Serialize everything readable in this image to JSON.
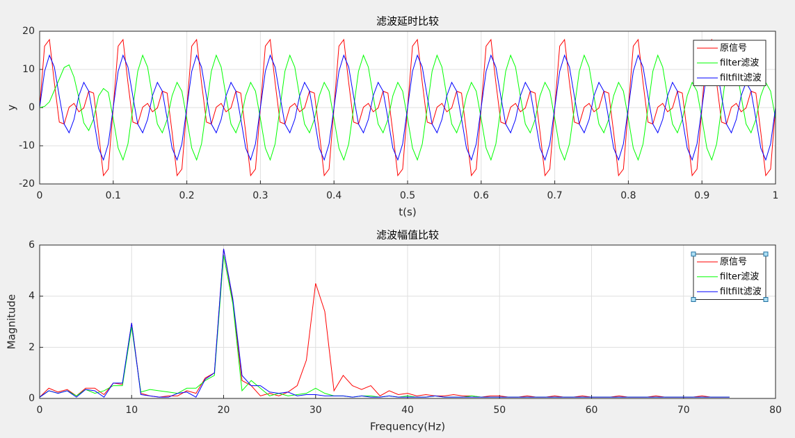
{
  "chart_data": [
    {
      "type": "line",
      "title": "滤波延时比较",
      "xlabel": "t(s)",
      "ylabel": "y",
      "xlim": [
        0,
        1
      ],
      "ylim": [
        -20,
        20
      ],
      "xticks": [
        0,
        0.1,
        0.2,
        0.3,
        0.4,
        0.5,
        0.6,
        0.7,
        0.8,
        0.9,
        1
      ],
      "yticks": [
        -20,
        -10,
        0,
        10,
        20
      ],
      "grid": true,
      "legend": "northeast",
      "x": [
        0,
        0.0067,
        0.0133,
        0.02,
        0.0267,
        0.0333,
        0.04,
        0.0467,
        0.0533,
        0.06,
        0.0667,
        0.0733,
        0.08,
        0.0867,
        0.0933,
        0.1,
        0.1067,
        0.1133,
        0.12,
        0.1267,
        0.1333,
        0.14,
        0.1467,
        0.1533,
        0.16,
        0.1667,
        0.1733,
        0.18,
        0.1867,
        0.1933,
        0.2,
        0.2067,
        0.2133,
        0.22,
        0.2267,
        0.2333,
        0.24,
        0.2467,
        0.2533,
        0.26,
        0.2667,
        0.2733,
        0.28,
        0.2867,
        0.2933,
        0.3,
        0.3067,
        0.3133,
        0.32,
        0.3267,
        0.3333,
        0.34,
        0.3467,
        0.3533,
        0.36,
        0.3667,
        0.3733,
        0.38,
        0.3867,
        0.3933,
        0.4,
        0.4067,
        0.4133,
        0.42,
        0.4267,
        0.4333,
        0.44,
        0.4467,
        0.4533,
        0.46,
        0.4667,
        0.4733,
        0.48,
        0.4867,
        0.4933,
        0.5,
        0.5067,
        0.5133,
        0.52,
        0.5267,
        0.5333,
        0.54,
        0.5467,
        0.5533,
        0.56,
        0.5667,
        0.5733,
        0.58,
        0.5867,
        0.5933,
        0.6,
        0.6067,
        0.6133,
        0.62,
        0.6267,
        0.6333,
        0.64,
        0.6467,
        0.6533,
        0.66,
        0.6667,
        0.6733,
        0.68,
        0.6867,
        0.6933,
        0.7,
        0.7067,
        0.7133,
        0.72,
        0.7267,
        0.7333,
        0.74,
        0.7467,
        0.7533,
        0.76,
        0.7667,
        0.7733,
        0.78,
        0.7867,
        0.7933,
        0.8,
        0.8067,
        0.8133,
        0.82,
        0.8267,
        0.8333,
        0.84,
        0.8467,
        0.8533,
        0.86,
        0.8667,
        0.8733,
        0.88,
        0.8867,
        0.8933,
        0.9,
        0.9067,
        0.9133,
        0.92,
        0.9267,
        0.9333,
        0.94,
        0.9467,
        0.9533,
        0.96,
        0.9667,
        0.9733,
        0.98,
        0.9867,
        0.9933,
        1
      ],
      "series": [
        {
          "name": "原信号",
          "color": "#ff0000",
          "values": [
            0,
            16.1,
            17.8,
            6.5,
            -3.8,
            -4.3,
            0.1,
            1.1,
            -1.1,
            -0.1,
            4.3,
            3.8,
            -6.5,
            -17.8,
            -16.1,
            0,
            16.1,
            17.8,
            6.5,
            -3.8,
            -4.3,
            0.1,
            1.1,
            -1.1,
            -0.1,
            4.3,
            3.8,
            -6.5,
            -17.8,
            -16.1,
            0,
            16.1,
            17.8,
            6.5,
            -3.8,
            -4.3,
            0.1,
            1.1,
            -1.1,
            -0.1,
            4.3,
            3.8,
            -6.5,
            -17.8,
            -16.1,
            0,
            16.1,
            17.8,
            6.5,
            -3.8,
            -4.3,
            0.1,
            1.1,
            -1.1,
            -0.1,
            4.3,
            3.8,
            -6.5,
            -17.8,
            -16.1,
            0,
            16.1,
            17.8,
            6.5,
            -3.8,
            -4.3,
            0.1,
            1.1,
            -1.1,
            -0.1,
            4.3,
            3.8,
            -6.5,
            -17.8,
            -16.1,
            0,
            16.1,
            17.8,
            6.5,
            -3.8,
            -4.3,
            0.1,
            1.1,
            -1.1,
            -0.1,
            4.3,
            3.8,
            -6.5,
            -17.8,
            -16.1,
            0,
            16.1,
            17.8,
            6.5,
            -3.8,
            -4.3,
            0.1,
            1.1,
            -1.1,
            -0.1,
            4.3,
            3.8,
            -6.5,
            -17.8,
            -16.1,
            0,
            16.1,
            17.8,
            6.5,
            -3.8,
            -4.3,
            0.1,
            1.1,
            -1.1,
            -0.1,
            4.3,
            3.8,
            -6.5,
            -17.8,
            -16.1,
            0,
            16.1,
            17.8,
            6.5,
            -3.8,
            -4.3,
            0.1,
            1.1,
            -1.1,
            -0.1,
            4.3,
            3.8,
            -6.5,
            -17.8,
            -16.1,
            0,
            16.1,
            17.8,
            6.5,
            -3.8,
            -4.3,
            0.1,
            1.1,
            -1.1,
            -0.1,
            4.3,
            3.8,
            -6.5,
            -17.8,
            -16.1,
            0
          ]
        },
        {
          "name": "filter滤波",
          "color": "#00ff00",
          "values": [
            0,
            0.3,
            1.5,
            4.5,
            7.5,
            10.5,
            11.2,
            8,
            2.5,
            -4,
            -6,
            -3,
            3,
            5,
            4,
            -2.9,
            -10.6,
            -13.7,
            -9.5,
            0,
            9.5,
            13.7,
            10.6,
            2.9,
            -4.3,
            -6.6,
            -3.1,
            3.1,
            6.6,
            4.3,
            -2.9,
            -10.6,
            -13.7,
            -9.5,
            0,
            9.5,
            13.7,
            10.6,
            2.9,
            -4.3,
            -6.6,
            -3.1,
            3.1,
            6.6,
            4.3,
            -2.9,
            -10.6,
            -13.7,
            -9.5,
            0,
            9.5,
            13.7,
            10.6,
            2.9,
            -4.3,
            -6.6,
            -3.1,
            3.1,
            6.6,
            4.3,
            -2.9,
            -10.6,
            -13.7,
            -9.5,
            0,
            9.5,
            13.7,
            10.6,
            2.9,
            -4.3,
            -6.6,
            -3.1,
            3.1,
            6.6,
            4.3,
            -2.9,
            -10.6,
            -13.7,
            -9.5,
            0,
            9.5,
            13.7,
            10.6,
            2.9,
            -4.3,
            -6.6,
            -3.1,
            3.1,
            6.6,
            4.3,
            -2.9,
            -10.6,
            -13.7,
            -9.5,
            0,
            9.5,
            13.7,
            10.6,
            2.9,
            -4.3,
            -6.6,
            -3.1,
            3.1,
            6.6,
            4.3,
            -2.9,
            -10.6,
            -13.7,
            -9.5,
            0,
            9.5,
            13.7,
            10.6,
            2.9,
            -4.3,
            -6.6,
            -3.1,
            3.1,
            6.6,
            4.3,
            -2.9,
            -10.6,
            -13.7,
            -9.5,
            0,
            9.5,
            13.7,
            10.6,
            2.9,
            -4.3,
            -6.6,
            -3.1,
            3.1,
            6.6,
            4.3,
            -2.9,
            -10.6,
            -13.7,
            -9.5,
            0,
            9.5,
            13.7,
            10.6,
            2.9,
            -4.3,
            -6.6,
            -3.1,
            3.1,
            6.6,
            4.3,
            -2.9
          ]
        },
        {
          "name": "filtfilt滤波",
          "color": "#0000ff",
          "values": [
            0,
            9.5,
            13.7,
            10.6,
            2.9,
            -4.3,
            -6.6,
            -3.1,
            3.1,
            6.6,
            4.3,
            -2.9,
            -10.6,
            -13.7,
            -9.5,
            0,
            9.5,
            13.7,
            10.6,
            2.9,
            -4.3,
            -6.6,
            -3.1,
            3.1,
            6.6,
            4.3,
            -2.9,
            -10.6,
            -13.7,
            -9.5,
            0,
            9.5,
            13.7,
            10.6,
            2.9,
            -4.3,
            -6.6,
            -3.1,
            3.1,
            6.6,
            4.3,
            -2.9,
            -10.6,
            -13.7,
            -9.5,
            0,
            9.5,
            13.7,
            10.6,
            2.9,
            -4.3,
            -6.6,
            -3.1,
            3.1,
            6.6,
            4.3,
            -2.9,
            -10.6,
            -13.7,
            -9.5,
            0,
            9.5,
            13.7,
            10.6,
            2.9,
            -4.3,
            -6.6,
            -3.1,
            3.1,
            6.6,
            4.3,
            -2.9,
            -10.6,
            -13.7,
            -9.5,
            0,
            9.5,
            13.7,
            10.6,
            2.9,
            -4.3,
            -6.6,
            -3.1,
            3.1,
            6.6,
            4.3,
            -2.9,
            -10.6,
            -13.7,
            -9.5,
            0,
            9.5,
            13.7,
            10.6,
            2.9,
            -4.3,
            -6.6,
            -3.1,
            3.1,
            6.6,
            4.3,
            -2.9,
            -10.6,
            -13.7,
            -9.5,
            0,
            9.5,
            13.7,
            10.6,
            2.9,
            -4.3,
            -6.6,
            -3.1,
            3.1,
            6.6,
            4.3,
            -2.9,
            -10.6,
            -13.7,
            -9.5,
            0,
            9.5,
            13.7,
            10.6,
            2.9,
            -4.3,
            -6.6,
            -3.1,
            3.1,
            6.6,
            4.3,
            -2.9,
            -10.6,
            -13.7,
            -9.5,
            0,
            9.5,
            13.7,
            10.6,
            2.9,
            -4.3,
            -6.6,
            -3.1,
            3.1,
            6.6,
            4.3,
            -2.9,
            -10.6,
            -13.7,
            -9.5,
            0
          ]
        }
      ]
    },
    {
      "type": "line",
      "title": "滤波幅值比较",
      "xlabel": "Frequency(Hz)",
      "ylabel": "Magnitude",
      "xlim": [
        0,
        80
      ],
      "ylim": [
        0,
        6
      ],
      "xticks": [
        0,
        10,
        20,
        30,
        40,
        50,
        60,
        70,
        80
      ],
      "yticks": [
        0,
        2,
        4,
        6
      ],
      "grid": true,
      "legend": "northeast",
      "x": [
        0,
        1,
        2,
        3,
        4,
        5,
        6,
        7,
        8,
        9,
        10,
        11,
        12,
        13,
        14,
        15,
        16,
        17,
        18,
        19,
        20,
        21,
        22,
        23,
        24,
        25,
        26,
        27,
        28,
        29,
        30,
        31,
        32,
        33,
        34,
        35,
        36,
        37,
        38,
        39,
        40,
        41,
        42,
        43,
        44,
        45,
        46,
        47,
        48,
        49,
        50,
        51,
        52,
        53,
        54,
        55,
        56,
        57,
        58,
        59,
        60,
        61,
        62,
        63,
        64,
        65,
        66,
        67,
        68,
        69,
        70,
        71,
        72,
        73,
        74,
        75
      ],
      "series": [
        {
          "name": "原信号",
          "color": "#ff0000",
          "values": [
            0.05,
            0.4,
            0.25,
            0.35,
            0.1,
            0.4,
            0.4,
            0.15,
            0.6,
            0.55,
            2.95,
            0.2,
            0.1,
            0.05,
            0.1,
            0.1,
            0.3,
            0.2,
            0.8,
            1.0,
            5.85,
            3.8,
            0.7,
            0.5,
            0.1,
            0.2,
            0.1,
            0.25,
            0.5,
            1.5,
            4.5,
            3.4,
            0.3,
            0.9,
            0.5,
            0.35,
            0.5,
            0.1,
            0.3,
            0.15,
            0.2,
            0.1,
            0.15,
            0.1,
            0.1,
            0.15,
            0.1,
            0.1,
            0.05,
            0.1,
            0.1,
            0.05,
            0.05,
            0.1,
            0.05,
            0.05,
            0.1,
            0.05,
            0.05,
            0.1,
            0.05,
            0.05,
            0.05,
            0.1,
            0.05,
            0.05,
            0.05,
            0.1,
            0.05,
            0.05,
            0.05,
            0.05,
            0.1,
            0.05,
            0.05,
            0.05
          ]
        },
        {
          "name": "filter滤波",
          "color": "#00ff00",
          "values": [
            0.05,
            0.3,
            0.2,
            0.3,
            0.1,
            0.35,
            0.2,
            0.3,
            0.5,
            0.5,
            2.8,
            0.25,
            0.35,
            0.3,
            0.25,
            0.2,
            0.4,
            0.4,
            0.7,
            0.9,
            5.6,
            3.7,
            0.3,
            0.7,
            0.4,
            0.1,
            0.2,
            0.1,
            0.15,
            0.2,
            0.4,
            0.2,
            0.1,
            0.1,
            0.05,
            0.1,
            0.1,
            0.05,
            0.1,
            0.05,
            0.1,
            0.05,
            0.05,
            0.1,
            0.05,
            0.05,
            0.05,
            0.1,
            0.05,
            0.05,
            0.05,
            0.05,
            0.05,
            0.05,
            0.05,
            0.05,
            0.05,
            0.05,
            0.05,
            0.05,
            0.05,
            0.05,
            0.05,
            0.05,
            0.05,
            0.05,
            0.05,
            0.05,
            0.05,
            0.05,
            0.05,
            0.05,
            0.05,
            0.05,
            0.05,
            0.05
          ]
        },
        {
          "name": "filtfilt滤波",
          "color": "#0000ff",
          "values": [
            0.05,
            0.3,
            0.2,
            0.3,
            0.05,
            0.35,
            0.3,
            0.05,
            0.6,
            0.6,
            2.95,
            0.15,
            0.1,
            0.05,
            0.05,
            0.2,
            0.25,
            0.05,
            0.75,
            1.0,
            5.85,
            3.9,
            0.9,
            0.5,
            0.5,
            0.25,
            0.2,
            0.25,
            0.1,
            0.15,
            0.15,
            0.1,
            0.1,
            0.1,
            0.05,
            0.1,
            0.05,
            0.05,
            0.1,
            0.05,
            0.05,
            0.05,
            0.05,
            0.1,
            0.05,
            0.05,
            0.05,
            0.05,
            0.05,
            0.05,
            0.05,
            0.05,
            0.05,
            0.05,
            0.05,
            0.05,
            0.05,
            0.05,
            0.05,
            0.05,
            0.05,
            0.05,
            0.05,
            0.05,
            0.05,
            0.05,
            0.05,
            0.05,
            0.05,
            0.05,
            0.05,
            0.05,
            0.05,
            0.05,
            0.05,
            0.05
          ]
        }
      ]
    }
  ]
}
